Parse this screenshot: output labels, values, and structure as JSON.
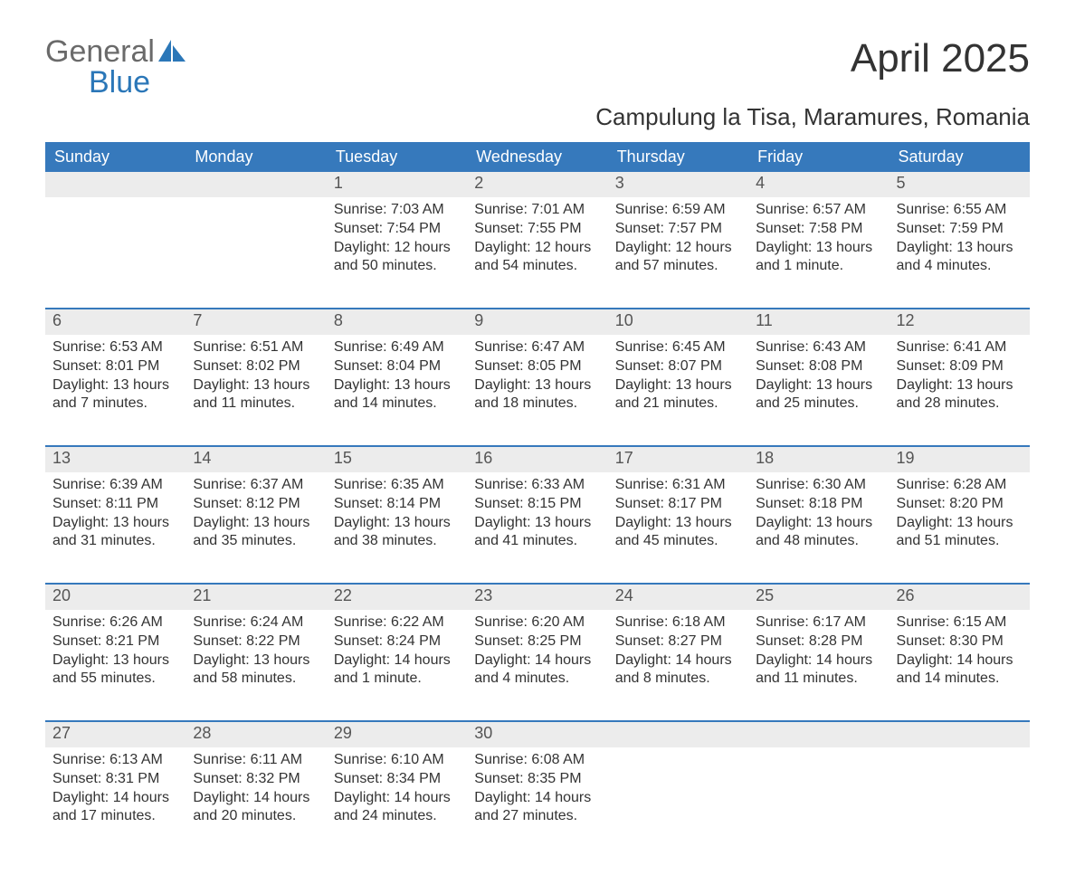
{
  "logo": {
    "general": "General",
    "blue": "Blue",
    "sail_color": "#2b77b8"
  },
  "title": "April 2025",
  "location": "Campulung la Tisa, Maramures, Romania",
  "colors": {
    "header_bg": "#3679bc",
    "header_text": "#ffffff",
    "daynum_bg": "#ececec",
    "daynum_border": "#3679bc",
    "body_text": "#333333"
  },
  "day_headers": [
    "Sunday",
    "Monday",
    "Tuesday",
    "Wednesday",
    "Thursday",
    "Friday",
    "Saturday"
  ],
  "weeks": [
    [
      null,
      null,
      {
        "n": "1",
        "sr": "Sunrise: 7:03 AM",
        "ss": "Sunset: 7:54 PM",
        "d1": "Daylight: 12 hours",
        "d2": "and 50 minutes."
      },
      {
        "n": "2",
        "sr": "Sunrise: 7:01 AM",
        "ss": "Sunset: 7:55 PM",
        "d1": "Daylight: 12 hours",
        "d2": "and 54 minutes."
      },
      {
        "n": "3",
        "sr": "Sunrise: 6:59 AM",
        "ss": "Sunset: 7:57 PM",
        "d1": "Daylight: 12 hours",
        "d2": "and 57 minutes."
      },
      {
        "n": "4",
        "sr": "Sunrise: 6:57 AM",
        "ss": "Sunset: 7:58 PM",
        "d1": "Daylight: 13 hours",
        "d2": "and 1 minute."
      },
      {
        "n": "5",
        "sr": "Sunrise: 6:55 AM",
        "ss": "Sunset: 7:59 PM",
        "d1": "Daylight: 13 hours",
        "d2": "and 4 minutes."
      }
    ],
    [
      {
        "n": "6",
        "sr": "Sunrise: 6:53 AM",
        "ss": "Sunset: 8:01 PM",
        "d1": "Daylight: 13 hours",
        "d2": "and 7 minutes."
      },
      {
        "n": "7",
        "sr": "Sunrise: 6:51 AM",
        "ss": "Sunset: 8:02 PM",
        "d1": "Daylight: 13 hours",
        "d2": "and 11 minutes."
      },
      {
        "n": "8",
        "sr": "Sunrise: 6:49 AM",
        "ss": "Sunset: 8:04 PM",
        "d1": "Daylight: 13 hours",
        "d2": "and 14 minutes."
      },
      {
        "n": "9",
        "sr": "Sunrise: 6:47 AM",
        "ss": "Sunset: 8:05 PM",
        "d1": "Daylight: 13 hours",
        "d2": "and 18 minutes."
      },
      {
        "n": "10",
        "sr": "Sunrise: 6:45 AM",
        "ss": "Sunset: 8:07 PM",
        "d1": "Daylight: 13 hours",
        "d2": "and 21 minutes."
      },
      {
        "n": "11",
        "sr": "Sunrise: 6:43 AM",
        "ss": "Sunset: 8:08 PM",
        "d1": "Daylight: 13 hours",
        "d2": "and 25 minutes."
      },
      {
        "n": "12",
        "sr": "Sunrise: 6:41 AM",
        "ss": "Sunset: 8:09 PM",
        "d1": "Daylight: 13 hours",
        "d2": "and 28 minutes."
      }
    ],
    [
      {
        "n": "13",
        "sr": "Sunrise: 6:39 AM",
        "ss": "Sunset: 8:11 PM",
        "d1": "Daylight: 13 hours",
        "d2": "and 31 minutes."
      },
      {
        "n": "14",
        "sr": "Sunrise: 6:37 AM",
        "ss": "Sunset: 8:12 PM",
        "d1": "Daylight: 13 hours",
        "d2": "and 35 minutes."
      },
      {
        "n": "15",
        "sr": "Sunrise: 6:35 AM",
        "ss": "Sunset: 8:14 PM",
        "d1": "Daylight: 13 hours",
        "d2": "and 38 minutes."
      },
      {
        "n": "16",
        "sr": "Sunrise: 6:33 AM",
        "ss": "Sunset: 8:15 PM",
        "d1": "Daylight: 13 hours",
        "d2": "and 41 minutes."
      },
      {
        "n": "17",
        "sr": "Sunrise: 6:31 AM",
        "ss": "Sunset: 8:17 PM",
        "d1": "Daylight: 13 hours",
        "d2": "and 45 minutes."
      },
      {
        "n": "18",
        "sr": "Sunrise: 6:30 AM",
        "ss": "Sunset: 8:18 PM",
        "d1": "Daylight: 13 hours",
        "d2": "and 48 minutes."
      },
      {
        "n": "19",
        "sr": "Sunrise: 6:28 AM",
        "ss": "Sunset: 8:20 PM",
        "d1": "Daylight: 13 hours",
        "d2": "and 51 minutes."
      }
    ],
    [
      {
        "n": "20",
        "sr": "Sunrise: 6:26 AM",
        "ss": "Sunset: 8:21 PM",
        "d1": "Daylight: 13 hours",
        "d2": "and 55 minutes."
      },
      {
        "n": "21",
        "sr": "Sunrise: 6:24 AM",
        "ss": "Sunset: 8:22 PM",
        "d1": "Daylight: 13 hours",
        "d2": "and 58 minutes."
      },
      {
        "n": "22",
        "sr": "Sunrise: 6:22 AM",
        "ss": "Sunset: 8:24 PM",
        "d1": "Daylight: 14 hours",
        "d2": "and 1 minute."
      },
      {
        "n": "23",
        "sr": "Sunrise: 6:20 AM",
        "ss": "Sunset: 8:25 PM",
        "d1": "Daylight: 14 hours",
        "d2": "and 4 minutes."
      },
      {
        "n": "24",
        "sr": "Sunrise: 6:18 AM",
        "ss": "Sunset: 8:27 PM",
        "d1": "Daylight: 14 hours",
        "d2": "and 8 minutes."
      },
      {
        "n": "25",
        "sr": "Sunrise: 6:17 AM",
        "ss": "Sunset: 8:28 PM",
        "d1": "Daylight: 14 hours",
        "d2": "and 11 minutes."
      },
      {
        "n": "26",
        "sr": "Sunrise: 6:15 AM",
        "ss": "Sunset: 8:30 PM",
        "d1": "Daylight: 14 hours",
        "d2": "and 14 minutes."
      }
    ],
    [
      {
        "n": "27",
        "sr": "Sunrise: 6:13 AM",
        "ss": "Sunset: 8:31 PM",
        "d1": "Daylight: 14 hours",
        "d2": "and 17 minutes."
      },
      {
        "n": "28",
        "sr": "Sunrise: 6:11 AM",
        "ss": "Sunset: 8:32 PM",
        "d1": "Daylight: 14 hours",
        "d2": "and 20 minutes."
      },
      {
        "n": "29",
        "sr": "Sunrise: 6:10 AM",
        "ss": "Sunset: 8:34 PM",
        "d1": "Daylight: 14 hours",
        "d2": "and 24 minutes."
      },
      {
        "n": "30",
        "sr": "Sunrise: 6:08 AM",
        "ss": "Sunset: 8:35 PM",
        "d1": "Daylight: 14 hours",
        "d2": "and 27 minutes."
      },
      null,
      null,
      null
    ]
  ]
}
